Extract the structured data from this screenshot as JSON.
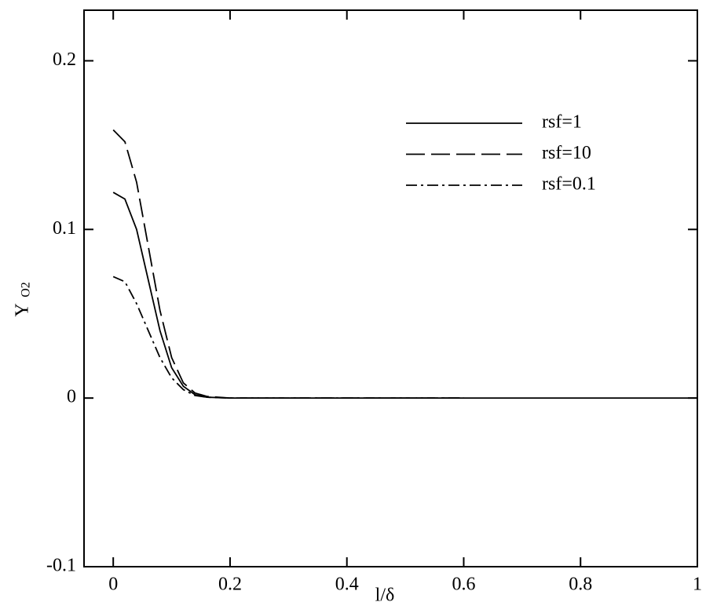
{
  "chart_data": {
    "type": "line",
    "x_label": "l/δ",
    "y_label": "Y",
    "y_label_sub": "O2",
    "x": [
      0,
      0.02,
      0.04,
      0.06,
      0.08,
      0.1,
      0.12,
      0.14,
      0.16,
      0.2,
      0.3,
      0.4,
      0.5,
      0.6,
      0.7,
      0.8,
      0.9,
      1
    ],
    "series": [
      {
        "name": "rsf=1",
        "color": "#000000",
        "dash": "none",
        "values": [
          0.122,
          0.118,
          0.1,
          0.07,
          0.04,
          0.018,
          0.007,
          0.002,
          0.0005,
          0,
          0,
          0,
          0,
          0,
          0,
          0,
          0,
          0
        ]
      },
      {
        "name": "rsf=10",
        "color": "#000000",
        "dash": "24 8",
        "values": [
          0.159,
          0.152,
          0.128,
          0.09,
          0.052,
          0.024,
          0.009,
          0.003,
          0.001,
          0,
          0,
          0,
          0,
          0,
          null,
          null,
          null,
          null
        ]
      },
      {
        "name": "rsf=0.1",
        "color": "#000000",
        "dash": "14 5 3 5",
        "values": [
          0.072,
          0.069,
          0.056,
          0.04,
          0.024,
          0.012,
          0.005,
          0.0015,
          0.0005,
          0,
          0,
          0,
          0,
          0,
          null,
          null,
          null,
          null
        ]
      }
    ],
    "xlim": [
      -0.05,
      1
    ],
    "ylim": [
      -0.1,
      0.23
    ],
    "xticks": [
      0,
      0.2,
      0.4,
      0.6,
      0.8,
      1
    ],
    "yticks": [
      -0.1,
      0,
      0.1,
      0.2
    ],
    "legend": "upper-right"
  }
}
